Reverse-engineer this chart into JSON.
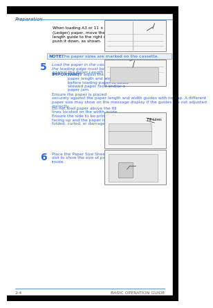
{
  "bg_color": "#ffffff",
  "page_bg": "#ffffff",
  "header_text": "Preparation",
  "header_line_color": "#6699cc",
  "footer_left": "2-4",
  "footer_right": "BASIC OPERATION GUIDE",
  "footer_line_color": "#6699cc",
  "blue_color": "#3366cc",
  "dark_blue": "#003399",
  "note_bg": "#ddeeff",
  "note_border": "#6699cc",
  "note_text": "NOTE:  The paper sizes are marked on the cassette.",
  "note_label": "NOTE:",
  "step5_num": "5",
  "step6_num": "6",
  "intro_text": "When loading A3 or 11 × 17\"\n(Ledger) paper, move the paper\nlength guide to the right end and\npush it down, as shown.",
  "step5_text_line1": "Load the paper in the cassette,",
  "step5_text_line2": "the leading edge must be aligned",
  "step5_text_line3": "against the Paper Length Guide.",
  "step5_important_label": "IMPORTANT:",
  "step5_important_text": " Always adjust the\npaper length and width guides\nbefore loading paper to avoid\nskewed paper feed and/or a\npaper jam.\nEnsure the paper is placed\nsecurely against the paper length and width guides with no gap. A different\npaper size may show on the message display if the guides are not adjusted\ncorrectly.\nDo not load paper above the fill\nlines located on the width guide.\nEnsure the side to be printed is\nfacing up and the paper is not\nfolded, curled, or damaged.",
  "step6_text": "Place the Paper Size Sheet in the\nslot to show the size of paper\ninside.",
  "image_border_color": "#888888",
  "fill_lines_label": "Fill Lines"
}
